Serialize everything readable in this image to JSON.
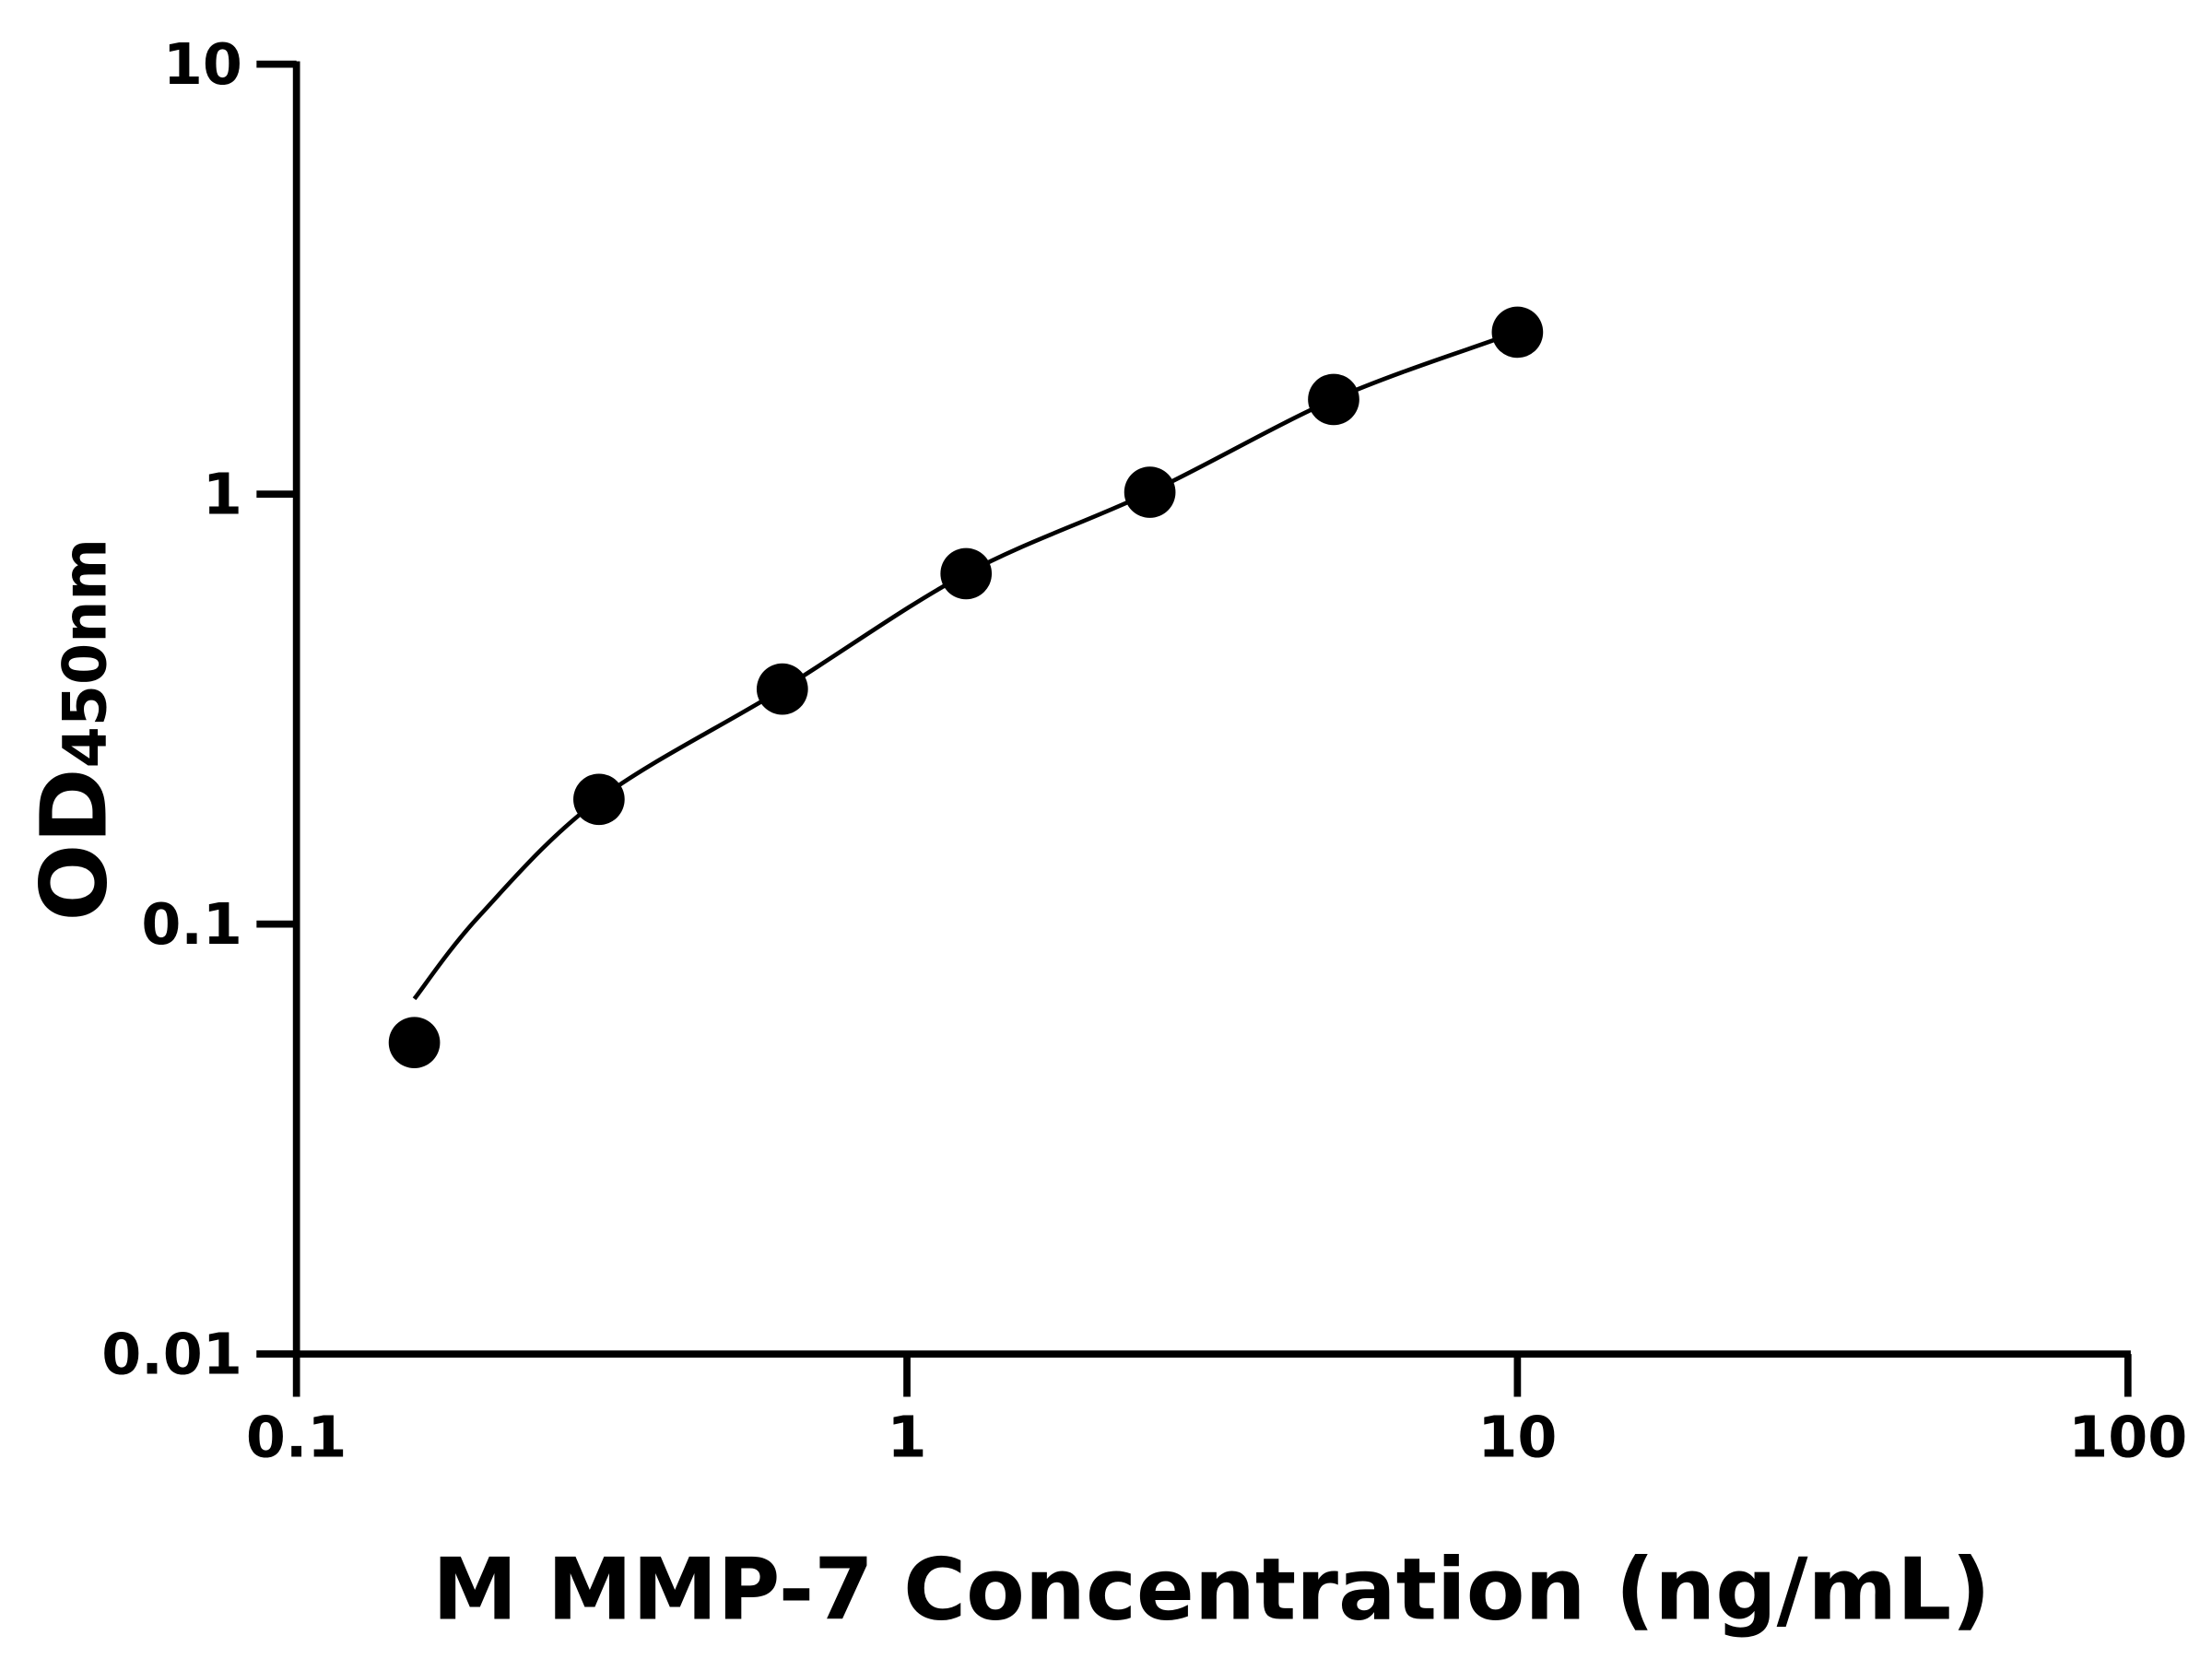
{
  "chart_data": {
    "type": "scatter",
    "title": "",
    "xlabel": "M MMP-7 Concentration (ng/mL)",
    "ylabel_main": "OD",
    "ylabel_sub": "450nm",
    "x_scale": "log",
    "y_scale": "log",
    "xlim": [
      0.1,
      100
    ],
    "ylim": [
      0.01,
      10
    ],
    "x_ticks": [
      0.1,
      1,
      10,
      100
    ],
    "x_tick_labels": [
      "0.1",
      "1",
      "10",
      "100"
    ],
    "y_ticks": [
      0.01,
      0.1,
      1,
      10
    ],
    "y_tick_labels": [
      "0.01",
      "0.1",
      "1",
      "10"
    ],
    "grid": false,
    "legend": "none",
    "colors": {
      "points": "#000000",
      "curve": "#000000",
      "axes": "#000000"
    },
    "points": {
      "x": [
        0.156,
        0.313,
        0.625,
        1.25,
        2.5,
        5,
        10
      ],
      "y": [
        0.053,
        0.195,
        0.352,
        0.653,
        1.01,
        1.66,
        2.38
      ]
    },
    "fit_curve": {
      "x": [
        0.156,
        0.2,
        0.313,
        0.625,
        1.25,
        2.5,
        5,
        9.3
      ],
      "y": [
        0.067,
        0.105,
        0.195,
        0.352,
        0.653,
        1.01,
        1.66,
        2.3
      ]
    }
  }
}
